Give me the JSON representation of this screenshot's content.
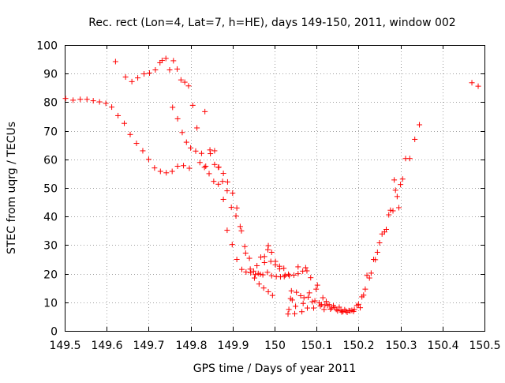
{
  "chart_data": {
    "type": "scatter",
    "title": "Rec. rect (Lon=4, Lat=7, h=HE), days 149-150, 2011, window 002",
    "xlabel": "GPS time / Days of year 2011",
    "ylabel": "STEC from uqrg / TECUs",
    "xlim": [
      149.5,
      150.5
    ],
    "ylim": [
      0,
      100
    ],
    "xticks": [
      149.5,
      149.6,
      149.7,
      149.8,
      149.9,
      150.0,
      150.1,
      150.2,
      150.3,
      150.4,
      150.5
    ],
    "xtick_labels": [
      "149.5",
      "149.6",
      "149.7",
      "149.8",
      "149.9",
      "150",
      "150.1",
      "150.2",
      "150.3",
      "150.4",
      "150.5"
    ],
    "yticks": [
      0,
      10,
      20,
      30,
      40,
      50,
      60,
      70,
      80,
      90,
      100
    ],
    "ytick_labels": [
      "0",
      "10",
      "20",
      "30",
      "40",
      "50",
      "60",
      "70",
      "80",
      "90",
      "100"
    ],
    "grid": true,
    "marker": "plus",
    "color": "#ff0000",
    "series": [
      {
        "name": "STEC",
        "points": [
          [
            149.502,
            81.3
          ],
          [
            149.52,
            80.7
          ],
          [
            149.537,
            81.0
          ],
          [
            149.553,
            81.0
          ],
          [
            149.568,
            80.5
          ],
          [
            149.583,
            80.1
          ],
          [
            149.598,
            79.6
          ],
          [
            149.612,
            78.3
          ],
          [
            149.627,
            75.3
          ],
          [
            149.642,
            72.6
          ],
          [
            149.656,
            68.7
          ],
          [
            149.671,
            65.6
          ],
          [
            149.686,
            63.0
          ],
          [
            149.7,
            60.0
          ],
          [
            149.714,
            57.0
          ],
          [
            149.728,
            55.8
          ],
          [
            149.742,
            55.3
          ],
          [
            149.756,
            55.8
          ],
          [
            149.769,
            57.6
          ],
          [
            149.783,
            57.8
          ],
          [
            149.797,
            56.9
          ],
          [
            149.621,
            94.2
          ],
          [
            149.645,
            88.8
          ],
          [
            149.66,
            87.2
          ],
          [
            149.674,
            88.5
          ],
          [
            149.689,
            89.9
          ],
          [
            149.702,
            90.2
          ],
          [
            149.716,
            91.3
          ],
          [
            149.727,
            93.8
          ],
          [
            149.732,
            94.6
          ],
          [
            149.741,
            95.3
          ],
          [
            149.75,
            91.3
          ],
          [
            149.759,
            94.5
          ],
          [
            149.768,
            91.6
          ],
          [
            149.777,
            87.8
          ],
          [
            149.786,
            87.0
          ],
          [
            149.795,
            85.7
          ],
          [
            149.757,
            78.2
          ],
          [
            149.769,
            74.2
          ],
          [
            149.78,
            69.4
          ],
          [
            149.79,
            66.0
          ],
          [
            149.8,
            64.0
          ],
          [
            149.812,
            62.9
          ],
          [
            149.822,
            58.9
          ],
          [
            149.833,
            57.2
          ],
          [
            149.844,
            55.0
          ],
          [
            149.855,
            52.3
          ],
          [
            149.866,
            51.3
          ],
          [
            149.876,
            52.3
          ],
          [
            149.887,
            49.0
          ],
          [
            149.897,
            43.2
          ],
          [
            149.908,
            40.2
          ],
          [
            149.918,
            36.5
          ],
          [
            149.929,
            29.5
          ],
          [
            149.94,
            25.4
          ],
          [
            149.95,
            20.9
          ],
          [
            149.961,
            20.1
          ],
          [
            149.972,
            19.6
          ],
          [
            149.983,
            20.5
          ],
          [
            149.993,
            19.3
          ],
          [
            150.004,
            19.0
          ],
          [
            150.014,
            18.9
          ],
          [
            150.025,
            19.5
          ],
          [
            150.035,
            19.3
          ],
          [
            150.046,
            19.5
          ],
          [
            150.056,
            20.0
          ],
          [
            150.067,
            20.9
          ],
          [
            150.077,
            21.0
          ],
          [
            149.805,
            78.9
          ],
          [
            149.815,
            71.0
          ],
          [
            149.826,
            62.1
          ],
          [
            149.836,
            57.6
          ],
          [
            149.847,
            62.0
          ],
          [
            149.857,
            58.2
          ],
          [
            149.867,
            57.3
          ],
          [
            149.878,
            55.1
          ],
          [
            149.888,
            52.1
          ],
          [
            149.9,
            48.2
          ],
          [
            149.91,
            43.0
          ],
          [
            149.921,
            35.0
          ],
          [
            149.931,
            27.2
          ],
          [
            149.942,
            21.6
          ],
          [
            149.952,
            18.5
          ],
          [
            149.963,
            16.4
          ],
          [
            149.974,
            15.0
          ],
          [
            149.985,
            13.7
          ],
          [
            149.995,
            12.4
          ],
          [
            149.834,
            76.7
          ],
          [
            149.846,
            63.3
          ],
          [
            149.857,
            63.0
          ],
          [
            149.866,
            57.2
          ],
          [
            149.878,
            46.0
          ],
          [
            149.887,
            35.2
          ],
          [
            149.899,
            30.2
          ],
          [
            149.91,
            25.0
          ],
          [
            149.922,
            21.5
          ],
          [
            149.932,
            20.6
          ],
          [
            149.943,
            20.3
          ],
          [
            149.954,
            19.7
          ],
          [
            149.966,
            19.8
          ],
          [
            149.976,
            26.0
          ],
          [
            149.984,
            28.4
          ],
          [
            149.991,
            24.3
          ],
          [
            150.002,
            23.1
          ],
          [
            150.012,
            21.7
          ],
          [
            150.023,
            19.0
          ],
          [
            149.958,
            22.8
          ],
          [
            149.967,
            25.8
          ],
          [
            149.976,
            23.9
          ],
          [
            149.985,
            29.8
          ],
          [
            149.993,
            27.5
          ],
          [
            150.002,
            24.3
          ],
          [
            150.012,
            22.6
          ],
          [
            150.022,
            21.9
          ],
          [
            150.033,
            19.8
          ],
          [
            150.032,
            5.9
          ],
          [
            150.034,
            7.5
          ],
          [
            150.038,
            11.3
          ],
          [
            150.04,
            14.0
          ],
          [
            150.042,
            10.8
          ],
          [
            150.048,
            6.0
          ],
          [
            150.05,
            8.6
          ],
          [
            150.052,
            13.5
          ],
          [
            150.056,
            22.4
          ],
          [
            150.062,
            12.3
          ],
          [
            150.065,
            6.7
          ],
          [
            150.068,
            9.6
          ],
          [
            150.07,
            11.6
          ],
          [
            150.074,
            22.1
          ],
          [
            150.078,
            8.0
          ],
          [
            150.08,
            11.8
          ],
          [
            150.083,
            13.3
          ],
          [
            150.086,
            18.6
          ],
          [
            150.09,
            10.2
          ],
          [
            150.093,
            8.0
          ],
          [
            150.096,
            10.5
          ],
          [
            150.099,
            14.6
          ],
          [
            150.102,
            16.0
          ],
          [
            150.106,
            9.8
          ],
          [
            150.109,
            8.7
          ],
          [
            150.112,
            9.2
          ],
          [
            150.115,
            11.6
          ],
          [
            150.118,
            7.5
          ],
          [
            150.12,
            9.1
          ],
          [
            150.123,
            10.3
          ],
          [
            150.126,
            8.9
          ],
          [
            150.13,
            9.2
          ],
          [
            150.133,
            7.6
          ],
          [
            150.136,
            8.0
          ],
          [
            150.14,
            8.8
          ],
          [
            150.143,
            8.2
          ],
          [
            150.147,
            7.5
          ],
          [
            150.15,
            7.0
          ],
          [
            150.154,
            8.3
          ],
          [
            150.158,
            7.2
          ],
          [
            150.16,
            6.6
          ],
          [
            150.163,
            6.8
          ],
          [
            150.167,
            7.4
          ],
          [
            150.17,
            6.9
          ],
          [
            150.173,
            6.5
          ],
          [
            150.177,
            7.1
          ],
          [
            150.18,
            7.0
          ],
          [
            150.184,
            7.2
          ],
          [
            150.188,
            6.8
          ],
          [
            150.19,
            7.5
          ],
          [
            150.196,
            8.9
          ],
          [
            150.2,
            9.3
          ],
          [
            150.204,
            8.1
          ],
          [
            150.208,
            11.9
          ],
          [
            150.212,
            12.5
          ],
          [
            150.216,
            14.6
          ],
          [
            150.22,
            19.4
          ],
          [
            150.226,
            18.5
          ],
          [
            150.23,
            20.2
          ],
          [
            150.236,
            25.0
          ],
          [
            150.24,
            24.9
          ],
          [
            150.245,
            27.5
          ],
          [
            150.25,
            30.8
          ],
          [
            150.256,
            33.9
          ],
          [
            150.262,
            34.6
          ],
          [
            150.266,
            35.5
          ],
          [
            150.272,
            40.6
          ],
          [
            150.276,
            42.2
          ],
          [
            150.282,
            42.0
          ],
          [
            150.285,
            52.8
          ],
          [
            150.288,
            49.2
          ],
          [
            150.292,
            47.0
          ],
          [
            150.296,
            43.1
          ],
          [
            150.3,
            51.2
          ],
          [
            150.305,
            53.1
          ],
          [
            150.312,
            60.3
          ],
          [
            150.322,
            60.3
          ],
          [
            150.334,
            67.0
          ],
          [
            150.345,
            72.1
          ],
          [
            150.47,
            86.8
          ],
          [
            150.485,
            85.6
          ]
        ]
      }
    ]
  }
}
